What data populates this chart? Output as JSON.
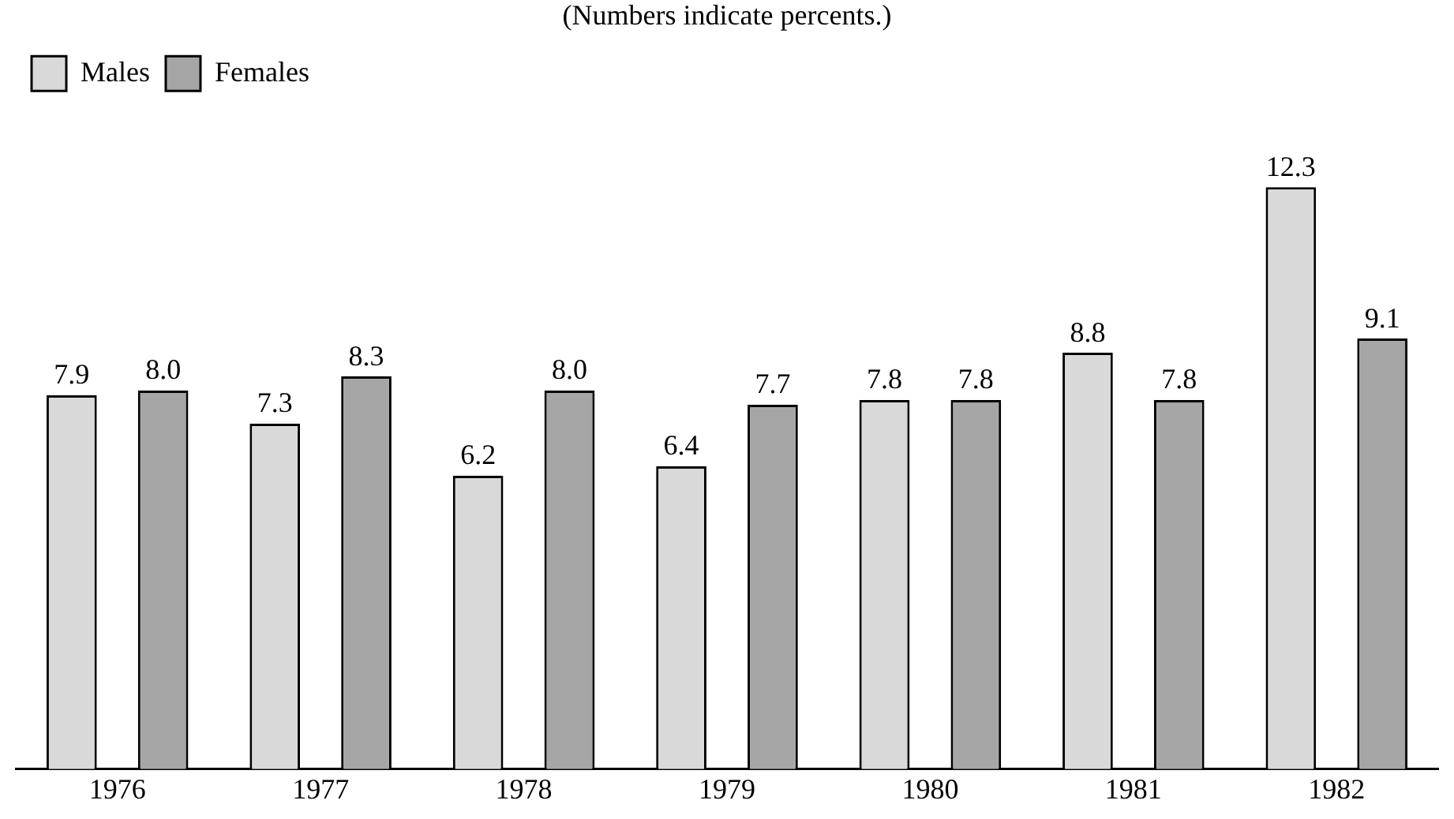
{
  "chart_data": {
    "type": "bar",
    "subtitle": "(Numbers indicate percents.)",
    "categories": [
      "1976",
      "1977",
      "1978",
      "1979",
      "1980",
      "1981",
      "1982"
    ],
    "series": [
      {
        "name": "Males",
        "color": "#d9d9d9",
        "values": [
          7.9,
          7.3,
          6.2,
          6.4,
          7.8,
          8.8,
          12.3
        ],
        "value_labels": [
          "7.9",
          "7.3",
          "6.2",
          "6.4",
          "7.8",
          "8.8",
          "12.3"
        ]
      },
      {
        "name": "Females",
        "color": "#a6a6a6",
        "values": [
          8.0,
          8.3,
          8.0,
          7.7,
          7.8,
          7.8,
          9.1
        ],
        "value_labels": [
          "8.0",
          "8.3",
          "8.0",
          "7.7",
          "7.8",
          "7.8",
          "9.1"
        ]
      }
    ],
    "legend": "top left",
    "grid": false
  }
}
